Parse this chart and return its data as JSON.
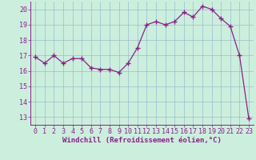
{
  "x": [
    0,
    1,
    2,
    3,
    4,
    5,
    6,
    7,
    8,
    9,
    10,
    11,
    12,
    13,
    14,
    15,
    16,
    17,
    18,
    19,
    20,
    21,
    22,
    23
  ],
  "y": [
    16.9,
    16.5,
    17.0,
    16.5,
    16.8,
    16.8,
    16.2,
    16.1,
    16.1,
    15.9,
    16.5,
    17.5,
    19.0,
    19.2,
    19.0,
    19.2,
    19.8,
    19.5,
    20.2,
    20.0,
    19.4,
    18.9,
    17.0,
    12.9
  ],
  "line_color": "#882288",
  "marker": "+",
  "marker_size": 4,
  "bg_color": "#cceedd",
  "grid_color": "#99bbcc",
  "xlabel": "Windchill (Refroidissement éolien,°C)",
  "xlim": [
    -0.5,
    23.5
  ],
  "ylim": [
    12.5,
    20.5
  ],
  "yticks": [
    13,
    14,
    15,
    16,
    17,
    18,
    19,
    20
  ],
  "xticks": [
    0,
    1,
    2,
    3,
    4,
    5,
    6,
    7,
    8,
    9,
    10,
    11,
    12,
    13,
    14,
    15,
    16,
    17,
    18,
    19,
    20,
    21,
    22,
    23
  ],
  "tick_color": "#882288",
  "label_fontsize": 6.5,
  "tick_fontsize": 6.0
}
